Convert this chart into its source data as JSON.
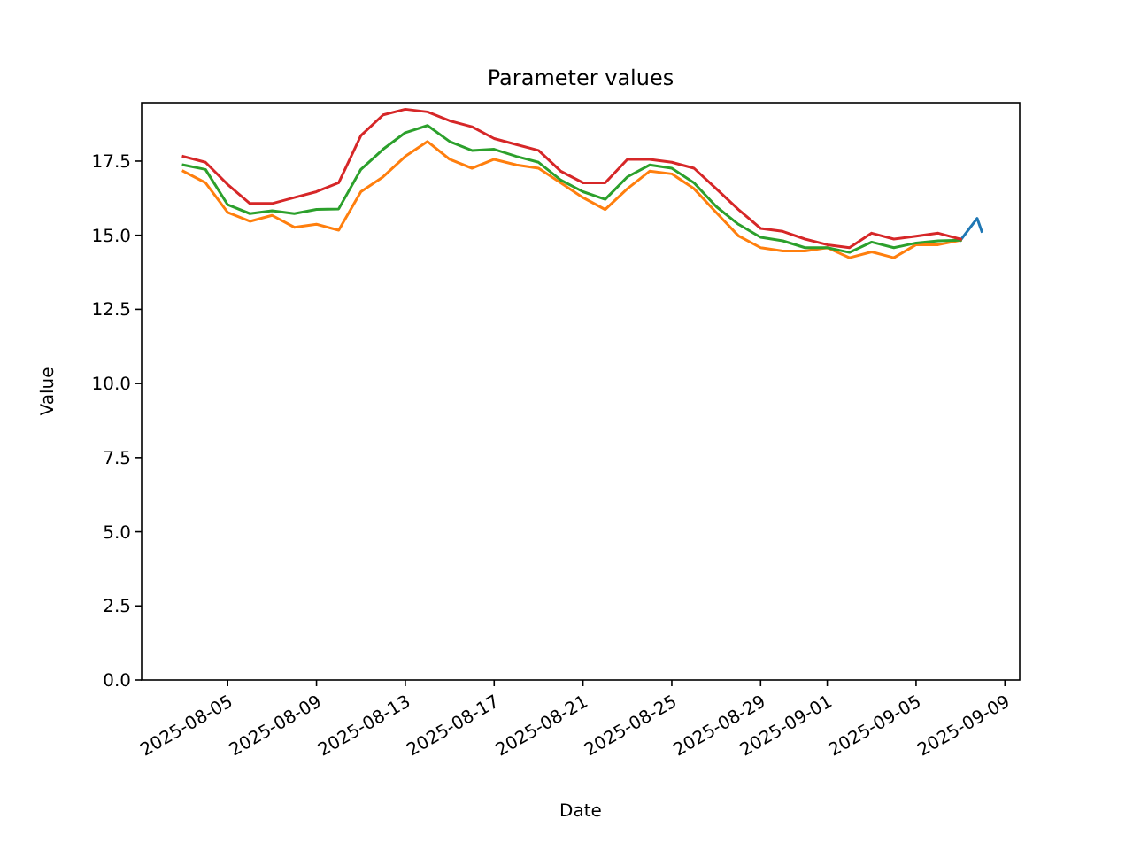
{
  "chart_data": {
    "type": "line",
    "title": "Parameter values",
    "xlabel": "Date",
    "ylabel": "Value",
    "x": [
      "2025-08-03",
      "2025-08-04",
      "2025-08-05",
      "2025-08-06",
      "2025-08-07",
      "2025-08-08",
      "2025-08-09",
      "2025-08-10",
      "2025-08-11",
      "2025-08-12",
      "2025-08-13",
      "2025-08-14",
      "2025-08-15",
      "2025-08-16",
      "2025-08-17",
      "2025-08-18",
      "2025-08-19",
      "2025-08-20",
      "2025-08-21",
      "2025-08-22",
      "2025-08-23",
      "2025-08-24",
      "2025-08-25",
      "2025-08-26",
      "2025-08-27",
      "2025-08-28",
      "2025-08-29",
      "2025-08-30",
      "2025-08-31",
      "2025-09-01",
      "2025-09-02",
      "2025-09-03",
      "2025-09-04",
      "2025-09-05",
      "2025-09-06",
      "2025-09-07"
    ],
    "series": [
      {
        "color": "#1f77b4",
        "x": [
          "2025-09-07",
          "2025-09-07T18:00",
          "2025-09-07T23:00"
        ],
        "values": [
          14.83,
          15.57,
          15.13
        ]
      },
      {
        "color": "#ff7f0e",
        "values": [
          17.16,
          16.77,
          15.77,
          15.47,
          15.67,
          15.27,
          15.37,
          15.17,
          16.47,
          16.97,
          17.66,
          18.16,
          17.56,
          17.26,
          17.56,
          17.37,
          17.26,
          16.77,
          16.27,
          15.87,
          16.57,
          17.16,
          17.07,
          16.57,
          15.77,
          14.98,
          14.58,
          14.47,
          14.47,
          14.58,
          14.24,
          14.44,
          14.24,
          14.68,
          14.68,
          14.83
        ]
      },
      {
        "color": "#2ca02c",
        "values": [
          17.37,
          17.22,
          16.03,
          15.73,
          15.83,
          15.73,
          15.87,
          15.89,
          17.22,
          17.9,
          18.46,
          18.7,
          18.16,
          17.86,
          17.9,
          17.66,
          17.46,
          16.86,
          16.47,
          16.21,
          16.97,
          17.37,
          17.26,
          16.77,
          15.97,
          15.37,
          14.93,
          14.81,
          14.58,
          14.58,
          14.42,
          14.77,
          14.58,
          14.74,
          14.81,
          14.83
        ]
      },
      {
        "color": "#d62728",
        "values": [
          17.66,
          17.46,
          16.71,
          16.07,
          16.07,
          16.27,
          16.47,
          16.77,
          18.36,
          19.06,
          19.25,
          19.16,
          18.86,
          18.66,
          18.26,
          18.06,
          17.86,
          17.16,
          16.77,
          16.77,
          17.56,
          17.56,
          17.46,
          17.26,
          16.57,
          15.87,
          15.23,
          15.13,
          14.87,
          14.68,
          14.58,
          15.07,
          14.87,
          14.97,
          15.07,
          14.87
        ]
      }
    ],
    "xlim": [
      "2025-08-01T03:00",
      "2025-09-09T16:00"
    ],
    "xticks": [
      "2025-08-05",
      "2025-08-09",
      "2025-08-13",
      "2025-08-17",
      "2025-08-21",
      "2025-08-25",
      "2025-08-29",
      "2025-09-01",
      "2025-09-05",
      "2025-09-09"
    ],
    "ylim": [
      0,
      19.47
    ],
    "yticks": [
      {
        "value": 0,
        "label": "0.0"
      },
      {
        "value": 2.5,
        "label": "2.5"
      },
      {
        "value": 5,
        "label": "5.0"
      },
      {
        "value": 7.5,
        "label": "7.5"
      },
      {
        "value": 10,
        "label": "10.0"
      },
      {
        "value": 12.5,
        "label": "12.5"
      },
      {
        "value": 15,
        "label": "15.0"
      },
      {
        "value": 17.5,
        "label": "17.5"
      }
    ]
  }
}
